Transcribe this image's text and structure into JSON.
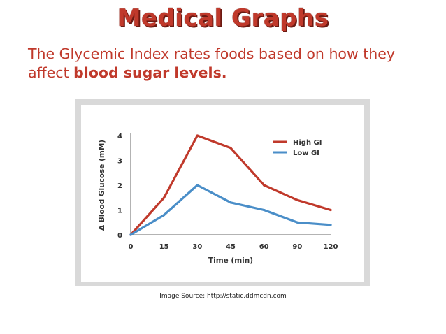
{
  "slide": {
    "title": "Medical Graphs",
    "text_plain": "The Glycemic Index rates foods based on how they affect ",
    "text_bold": "blood sugar levels.",
    "source": "Image Source: http://static.ddmcdn.com"
  },
  "colors": {
    "title": "#c0392b",
    "text": "#c0392b",
    "frame": "#d9d9d9",
    "plot_bg": "#ffffff",
    "high_gi": "#c0392b",
    "low_gi": "#4a8ec8"
  },
  "chart_data": {
    "type": "line",
    "title": "",
    "xlabel": "Time (min)",
    "ylabel": "Δ Blood Glucose (mM)",
    "categories": [
      "0",
      "15",
      "30",
      "45",
      "60",
      "90",
      "120"
    ],
    "ylim": [
      0,
      4
    ],
    "yticks": [
      "0",
      "1",
      "2",
      "3",
      "4"
    ],
    "grid": false,
    "legend_position": "top-right",
    "series": [
      {
        "name": "High GI",
        "color": "#c0392b",
        "values": [
          0,
          1.5,
          4.0,
          3.5,
          2.0,
          1.4,
          1.0
        ]
      },
      {
        "name": "Low GI",
        "color": "#4a8ec8",
        "values": [
          0,
          0.8,
          2.0,
          1.3,
          1.0,
          0.5,
          0.4
        ]
      }
    ]
  }
}
